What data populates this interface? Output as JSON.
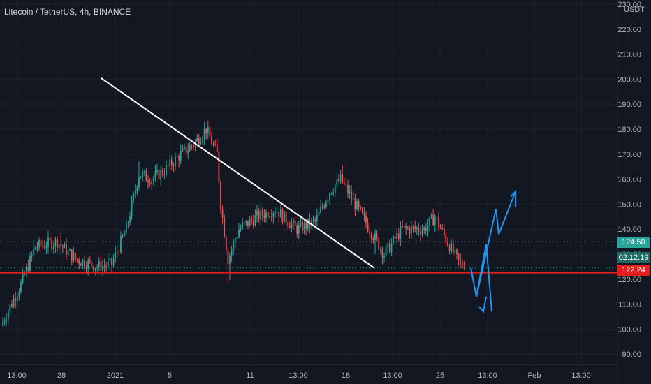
{
  "header": {
    "symbol_title": "Litecoin / TetherUS, 4h, BINANCE",
    "unit": "USDT"
  },
  "price_labels": {
    "last_price": "124.50",
    "countdown": "02:12:19",
    "support_price": "122.24"
  },
  "colors": {
    "background": "#131722",
    "up": "#26a69a",
    "down": "#ef5350",
    "grid": "#1e222d",
    "support": "#e31e1e",
    "trendline": "#ffffff",
    "projection": "#2196f3",
    "axis_text": "#b2b5be"
  },
  "chart_data": {
    "type": "candlestick",
    "title": "Litecoin / TetherUS, 4h, BINANCE",
    "ylabel": "USDT",
    "ylim": [
      75,
      232
    ],
    "yticks": [
      80,
      90,
      100,
      110,
      120,
      130,
      140,
      150,
      160,
      170,
      180,
      190,
      200,
      210,
      220,
      230
    ],
    "ytick_labels": [
      "80.00",
      "90.00",
      "100.00",
      "110.00",
      "120.00",
      "130.00",
      "140.00",
      "150.00",
      "160.00",
      "170.00",
      "180.00",
      "190.00",
      "200.00",
      "210.00",
      "220.00",
      "230.00"
    ],
    "x_range": [
      "Dec 26 07:00",
      "Jan 30 17:00"
    ],
    "xtick_labels": [
      "13:00",
      "28",
      "2021",
      "5",
      "11",
      "13:00",
      "18",
      "13:00",
      "25",
      "13:00",
      "Feb",
      "13:00"
    ],
    "grid": true,
    "last_price": 124.5,
    "support_level": 122.24,
    "dotted_level": 135,
    "close_path": [
      {
        "i": 0,
        "p": 103
      },
      {
        "i": 10,
        "p": 118
      },
      {
        "i": 18,
        "p": 133
      },
      {
        "i": 30,
        "p": 135
      },
      {
        "i": 40,
        "p": 128
      },
      {
        "i": 52,
        "p": 125
      },
      {
        "i": 60,
        "p": 126
      },
      {
        "i": 68,
        "p": 140
      },
      {
        "i": 75,
        "p": 162
      },
      {
        "i": 82,
        "p": 160
      },
      {
        "i": 90,
        "p": 164
      },
      {
        "i": 98,
        "p": 170
      },
      {
        "i": 105,
        "p": 174
      },
      {
        "i": 112,
        "p": 180
      },
      {
        "i": 118,
        "p": 170
      },
      {
        "i": 120,
        "p": 150
      },
      {
        "i": 124,
        "p": 128
      },
      {
        "i": 130,
        "p": 140
      },
      {
        "i": 140,
        "p": 145
      },
      {
        "i": 150,
        "p": 148
      },
      {
        "i": 162,
        "p": 140
      },
      {
        "i": 172,
        "p": 143
      },
      {
        "i": 180,
        "p": 155
      },
      {
        "i": 186,
        "p": 160
      },
      {
        "i": 194,
        "p": 150
      },
      {
        "i": 202,
        "p": 140
      },
      {
        "i": 210,
        "p": 130
      },
      {
        "i": 220,
        "p": 140
      },
      {
        "i": 232,
        "p": 140
      },
      {
        "i": 238,
        "p": 145
      },
      {
        "i": 244,
        "p": 136
      },
      {
        "i": 250,
        "p": 128
      },
      {
        "i": 254,
        "p": 124.5
      }
    ],
    "spikes": [
      {
        "i": 17,
        "h": 3
      },
      {
        "i": 32,
        "h": 2
      },
      {
        "i": 75,
        "h": 5
      },
      {
        "i": 119,
        "h": 4
      },
      {
        "i": 124,
        "l": 7
      },
      {
        "i": 125,
        "l": 4
      },
      {
        "i": 187,
        "h": 3
      },
      {
        "i": 205,
        "l": 4
      }
    ],
    "seed": 7,
    "annotations": {
      "trendline": [
        {
          "x": "Jan 4 07:00",
          "y": 200.5
        },
        {
          "x": "Jan 29 09:00",
          "y": 124.5
        }
      ],
      "support_line": 122.24,
      "projection_up": [
        [
          124.5,
          110
        ],
        [
          148,
          138
        ],
        [
          155,
          148
        ]
      ],
      "projection_down": [
        [
          124.5,
          113
        ],
        [
          107,
          143
        ],
        [
          113,
          158
        ]
      ]
    }
  }
}
